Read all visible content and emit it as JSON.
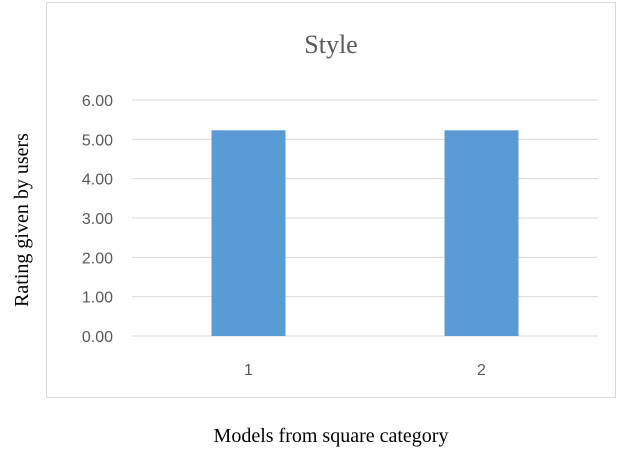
{
  "chart_data": {
    "type": "bar",
    "title": "Style",
    "xlabel": "Models from square category",
    "ylabel": "Rating given by users",
    "categories": [
      "1",
      "2"
    ],
    "values": [
      5.23,
      5.23
    ],
    "ylim": [
      0,
      6
    ],
    "yticks": [
      "0.00",
      "1.00",
      "2.00",
      "3.00",
      "4.00",
      "5.00",
      "6.00"
    ],
    "grid": true,
    "legend": "none",
    "colors": {
      "bar": "#5b9bd5",
      "grid": "#d9d9d9",
      "tick_text": "#595959",
      "title_text": "#595959"
    }
  }
}
